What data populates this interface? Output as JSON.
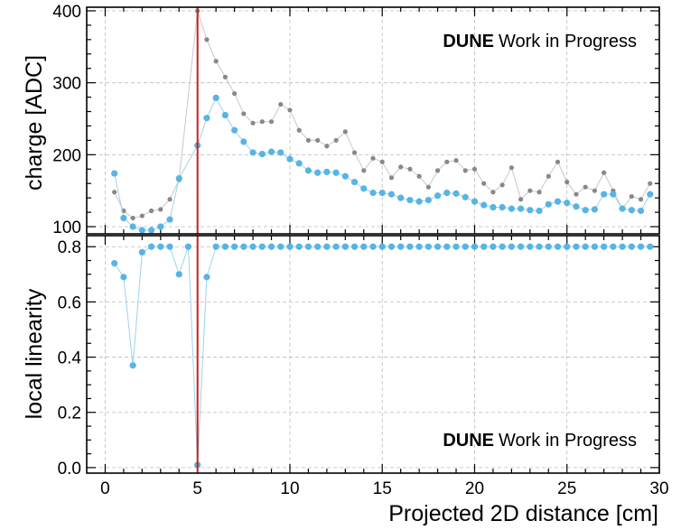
{
  "chart_data": [
    {
      "type": "scatter",
      "ylabel": "charge [ADC]",
      "xlim": [
        -1,
        30
      ],
      "ylim": [
        90,
        405
      ],
      "yticks": [
        "100",
        "200",
        "300",
        "400"
      ],
      "grid": true,
      "watermark": {
        "bold": "DUNE",
        "rest": "Work in Progress"
      },
      "marker_line_x": 5,
      "marker_line_color": "#c8201e",
      "series": [
        {
          "color": "#888888",
          "x": [
            0.5,
            1,
            1.5,
            2,
            2.5,
            3,
            3.5,
            4,
            5,
            5.5,
            6,
            6.5,
            7,
            7.5,
            8,
            8.5,
            9,
            9.5,
            10,
            10.5,
            11,
            11.5,
            12,
            12.5,
            13,
            13.5,
            14,
            14.5,
            15,
            15.5,
            16,
            16.5,
            17,
            17.5,
            18,
            18.5,
            19,
            19.5,
            20,
            20.5,
            21,
            21.5,
            22,
            22.5,
            23,
            23.5,
            24,
            24.5,
            25,
            25.5,
            26,
            26.5,
            27,
            27.5,
            28,
            28.5,
            29,
            29.5
          ],
          "y": [
            148,
            122,
            112,
            115,
            122,
            124,
            138,
            165,
            400,
            360,
            330,
            308,
            285,
            257,
            244,
            246,
            246,
            270,
            262,
            234,
            220,
            220,
            212,
            220,
            232,
            203,
            178,
            195,
            190,
            168,
            183,
            180,
            170,
            155,
            178,
            190,
            192,
            178,
            180,
            160,
            148,
            158,
            182,
            138,
            150,
            148,
            170,
            190,
            162,
            145,
            155,
            150,
            175,
            150,
            125,
            142,
            138,
            160
          ]
        },
        {
          "color": "#58b4e4",
          "x": [
            0.5,
            1,
            1.5,
            2,
            2.5,
            3,
            3.5,
            4,
            5,
            5.5,
            6,
            6.5,
            7,
            7.5,
            8,
            8.5,
            9,
            9.5,
            10,
            10.5,
            11,
            11.5,
            12,
            12.5,
            13,
            13.5,
            14,
            14.5,
            15,
            15.5,
            16,
            16.5,
            17,
            17.5,
            18,
            18.5,
            19,
            19.5,
            20,
            20.5,
            21,
            21.5,
            22,
            22.5,
            23,
            23.5,
            24,
            24.5,
            25,
            25.5,
            26,
            26.5,
            27,
            27.5,
            28,
            28.5,
            29,
            29.5
          ],
          "y": [
            174,
            112,
            100,
            95,
            95,
            100,
            110,
            167,
            213,
            251,
            279,
            255,
            234,
            218,
            203,
            201,
            204,
            203,
            194,
            188,
            178,
            175,
            176,
            175,
            170,
            162,
            153,
            147,
            147,
            145,
            140,
            137,
            135,
            137,
            143,
            147,
            146,
            141,
            135,
            130,
            127,
            127,
            125,
            125,
            123,
            122,
            131,
            135,
            133,
            128,
            123,
            124,
            145,
            145,
            125,
            123,
            122,
            145
          ]
        }
      ]
    },
    {
      "type": "scatter",
      "xlabel": "Projected 2D distance [cm]",
      "ylabel": "local linearity",
      "xlim": [
        -1,
        30
      ],
      "ylim": [
        -0.02,
        0.84
      ],
      "xticks": [
        "0",
        "5",
        "10",
        "15",
        "20",
        "25",
        "30"
      ],
      "yticks": [
        "0.0",
        "0.2",
        "0.4",
        "0.6",
        "0.8"
      ],
      "grid": true,
      "watermark": {
        "bold": "DUNE",
        "rest": "Work in Progress"
      },
      "marker_line_x": 5,
      "marker_line_color": "#c8201e",
      "series": [
        {
          "color": "#58b4e4",
          "x": [
            0.5,
            1,
            1.5,
            2,
            2.5,
            3,
            3.5,
            4,
            4.5,
            5,
            5.5,
            6,
            6.5,
            7,
            7.5,
            8,
            8.5,
            9,
            9.5,
            10,
            10.5,
            11,
            11.5,
            12,
            12.5,
            13,
            13.5,
            14,
            14.5,
            15,
            15.5,
            16,
            16.5,
            17,
            17.5,
            18,
            18.5,
            19,
            19.5,
            20,
            20.5,
            21,
            21.5,
            22,
            22.5,
            23,
            23.5,
            24,
            24.5,
            25,
            25.5,
            26,
            26.5,
            27,
            27.5,
            28,
            28.5,
            29,
            29.5
          ],
          "y": [
            0.74,
            0.69,
            0.37,
            0.78,
            0.8,
            0.8,
            0.8,
            0.7,
            0.8,
            0.01,
            0.69,
            0.8,
            0.8,
            0.8,
            0.8,
            0.8,
            0.8,
            0.8,
            0.8,
            0.8,
            0.8,
            0.8,
            0.8,
            0.8,
            0.8,
            0.8,
            0.8,
            0.8,
            0.8,
            0.8,
            0.8,
            0.8,
            0.8,
            0.8,
            0.8,
            0.8,
            0.8,
            0.8,
            0.8,
            0.8,
            0.8,
            0.8,
            0.8,
            0.8,
            0.8,
            0.8,
            0.8,
            0.8,
            0.8,
            0.8,
            0.8,
            0.8,
            0.8,
            0.8,
            0.8,
            0.8,
            0.8,
            0.8,
            0.8
          ]
        }
      ]
    }
  ]
}
